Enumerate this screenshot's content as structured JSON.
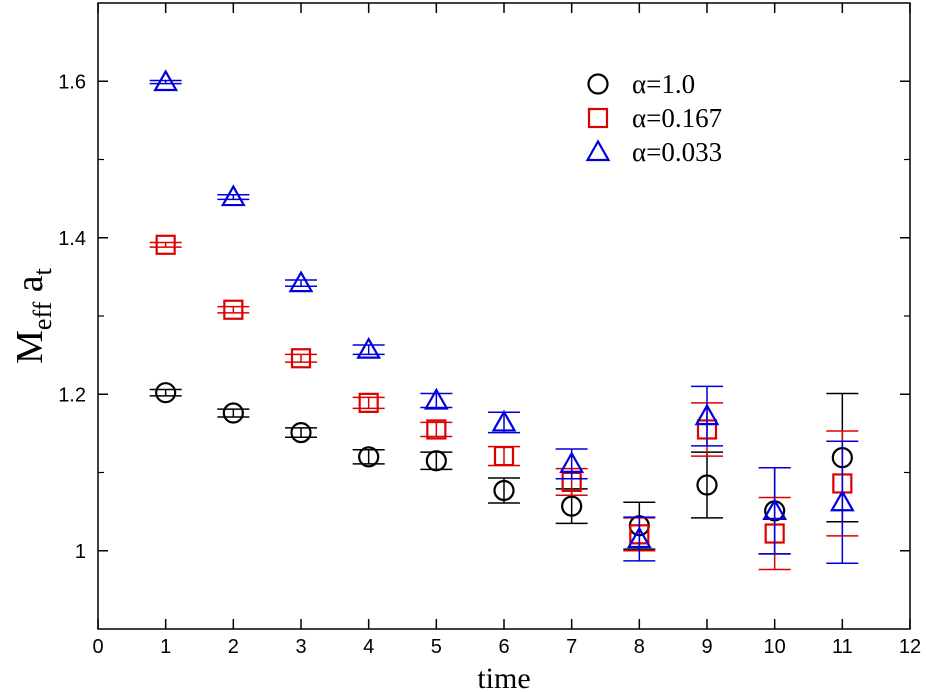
{
  "chart_data": {
    "type": "scatter",
    "title": "",
    "xlabel": "time",
    "ylabel": {
      "main": "M",
      "sub1": "eff",
      "mid": " a",
      "sub2": "t"
    },
    "xlim": [
      0,
      12
    ],
    "ylim": [
      0.9,
      1.7
    ],
    "x_ticks": [
      0,
      1,
      2,
      3,
      4,
      5,
      6,
      7,
      8,
      9,
      10,
      11,
      12
    ],
    "x_tick_labels": [
      "0",
      "1",
      "2",
      "3",
      "4",
      "5",
      "6",
      "7",
      "8",
      "9",
      "10",
      "11",
      "12"
    ],
    "y_ticks": [
      1.0,
      1.2,
      1.4,
      1.6
    ],
    "y_tick_labels": [
      "1",
      "1.2",
      "1.4",
      "1.6"
    ],
    "grid": false,
    "legend_position": "top-right",
    "series": [
      {
        "name": "α=1.0",
        "marker": "circle",
        "color": "#000000",
        "x": [
          1,
          2,
          3,
          4,
          5,
          6,
          7,
          8,
          9,
          10,
          11
        ],
        "y": [
          1.202,
          1.176,
          1.151,
          1.12,
          1.115,
          1.077,
          1.057,
          1.032,
          1.084,
          1.051,
          1.119
        ],
        "err": [
          0.004,
          0.005,
          0.006,
          0.009,
          0.011,
          0.016,
          0.022,
          0.03,
          0.042,
          0.055,
          0.082
        ]
      },
      {
        "name": "α=0.167",
        "marker": "square",
        "color": "#dd0000",
        "x": [
          1,
          2,
          3,
          4,
          5,
          6,
          7,
          8,
          9,
          10,
          11
        ],
        "y": [
          1.391,
          1.308,
          1.246,
          1.189,
          1.155,
          1.121,
          1.088,
          1.021,
          1.155,
          1.022,
          1.086
        ],
        "err": [
          0.003,
          0.004,
          0.005,
          0.007,
          0.009,
          0.012,
          0.017,
          0.021,
          0.034,
          0.046,
          0.067
        ]
      },
      {
        "name": "α=0.033",
        "marker": "triangle",
        "color": "#0000dd",
        "x": [
          1,
          2,
          3,
          4,
          5,
          6,
          7,
          8,
          9,
          10,
          11
        ],
        "y": [
          1.599,
          1.452,
          1.342,
          1.257,
          1.192,
          1.164,
          1.111,
          1.015,
          1.172,
          1.051,
          1.062
        ],
        "err": [
          0.002,
          0.003,
          0.004,
          0.006,
          0.009,
          0.013,
          0.019,
          0.028,
          0.038,
          0.055,
          0.078
        ]
      }
    ]
  }
}
